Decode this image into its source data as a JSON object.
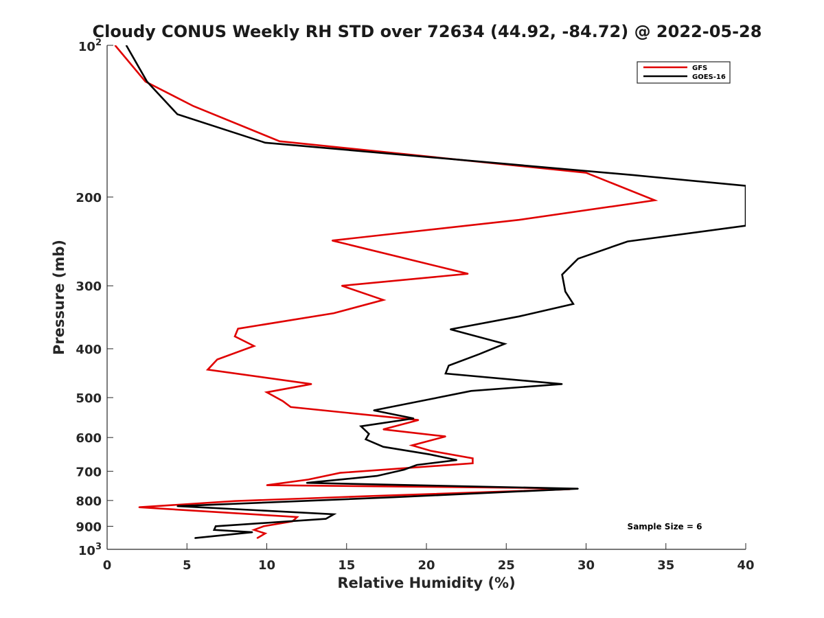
{
  "chart_data": {
    "type": "line",
    "title": "Cloudy CONUS Weekly RH STD over 72634 (44.92, -84.72) @ 2022-05-28",
    "xlabel": "Relative Humidity (%)",
    "ylabel": "Pressure (mb)",
    "xlim": [
      0,
      40
    ],
    "ylim": [
      100,
      1000
    ],
    "y_scale": "log",
    "y_reversed": true,
    "grid": false,
    "legend_position": "top-right",
    "x_ticks": [
      "0",
      "5",
      "10",
      "15",
      "20",
      "25",
      "30",
      "35",
      "40"
    ],
    "y_ticks": [
      {
        "value": 100,
        "base": "10",
        "exp": "2"
      },
      {
        "value": 200,
        "label": "200"
      },
      {
        "value": 300,
        "label": "300"
      },
      {
        "value": 400,
        "label": "400"
      },
      {
        "value": 500,
        "label": "500"
      },
      {
        "value": 600,
        "label": "600"
      },
      {
        "value": 700,
        "label": "700"
      },
      {
        "value": 800,
        "label": "800"
      },
      {
        "value": 900,
        "label": "900"
      },
      {
        "value": 1000,
        "base": "10",
        "exp": "3"
      }
    ],
    "series": [
      {
        "name": "GFS",
        "color": "#e00000",
        "points": [
          [
            0.5,
            100
          ],
          [
            2.4,
            118
          ],
          [
            5.4,
            132
          ],
          [
            10.8,
            155
          ],
          [
            30,
            179
          ],
          [
            34.3,
            203
          ],
          [
            25.8,
            222
          ],
          [
            14.1,
            244
          ],
          [
            22.6,
            284
          ],
          [
            14.7,
            300
          ],
          [
            17.3,
            320
          ],
          [
            14.2,
            340
          ],
          [
            8.2,
            365
          ],
          [
            8.0,
            378
          ],
          [
            9.2,
            395
          ],
          [
            6.9,
            420
          ],
          [
            6.3,
            440
          ],
          [
            12.8,
            470
          ],
          [
            10.0,
            488
          ],
          [
            11.0,
            508
          ],
          [
            11.5,
            522
          ],
          [
            19.5,
            554
          ],
          [
            17.3,
            578
          ],
          [
            21.2,
            597
          ],
          [
            19.1,
            622
          ],
          [
            20.3,
            638
          ],
          [
            22.9,
            660
          ],
          [
            22.9,
            675
          ],
          [
            14.6,
            705
          ],
          [
            12.6,
            727
          ],
          [
            10.0,
            746
          ],
          [
            26.0,
            755
          ],
          [
            29.0,
            760
          ],
          [
            16.0,
            785
          ],
          [
            8.0,
            802
          ],
          [
            2.0,
            825
          ],
          [
            11.9,
            863
          ],
          [
            11.6,
            880
          ],
          [
            9.8,
            900
          ],
          [
            9.2,
            915
          ],
          [
            9.9,
            930
          ],
          [
            9.4,
            950
          ]
        ]
      },
      {
        "name": "GOES-16",
        "color": "#000000",
        "points": [
          [
            1.2,
            100
          ],
          [
            2.5,
            118
          ],
          [
            4.4,
            137
          ],
          [
            9.9,
            156
          ],
          [
            33.0,
            181
          ],
          [
            40.0,
            190
          ],
          [
            40.0,
            228
          ],
          [
            32.6,
            245
          ],
          [
            29.5,
            265
          ],
          [
            28.5,
            285
          ],
          [
            28.7,
            308
          ],
          [
            29.2,
            326
          ],
          [
            25.8,
            345
          ],
          [
            21.5,
            366
          ],
          [
            24.9,
            391
          ],
          [
            23.3,
            410
          ],
          [
            21.4,
            432
          ],
          [
            21.2,
            448
          ],
          [
            28.5,
            470
          ],
          [
            22.8,
            485
          ],
          [
            20.3,
            503
          ],
          [
            16.7,
            530
          ],
          [
            19.2,
            550
          ],
          [
            15.9,
            570
          ],
          [
            16.4,
            590
          ],
          [
            16.2,
            605
          ],
          [
            17.3,
            626
          ],
          [
            20.2,
            648
          ],
          [
            21.9,
            665
          ],
          [
            19.4,
            680
          ],
          [
            18.6,
            695
          ],
          [
            16.9,
            715
          ],
          [
            12.5,
            738
          ],
          [
            29.5,
            758
          ],
          [
            18.0,
            788
          ],
          [
            4.4,
            821
          ],
          [
            14.2,
            852
          ],
          [
            13.7,
            870
          ],
          [
            6.8,
            900
          ],
          [
            6.7,
            915
          ],
          [
            9.1,
            925
          ],
          [
            5.5,
            950
          ]
        ]
      }
    ],
    "annotations": [
      "Sample Size = 6"
    ]
  }
}
